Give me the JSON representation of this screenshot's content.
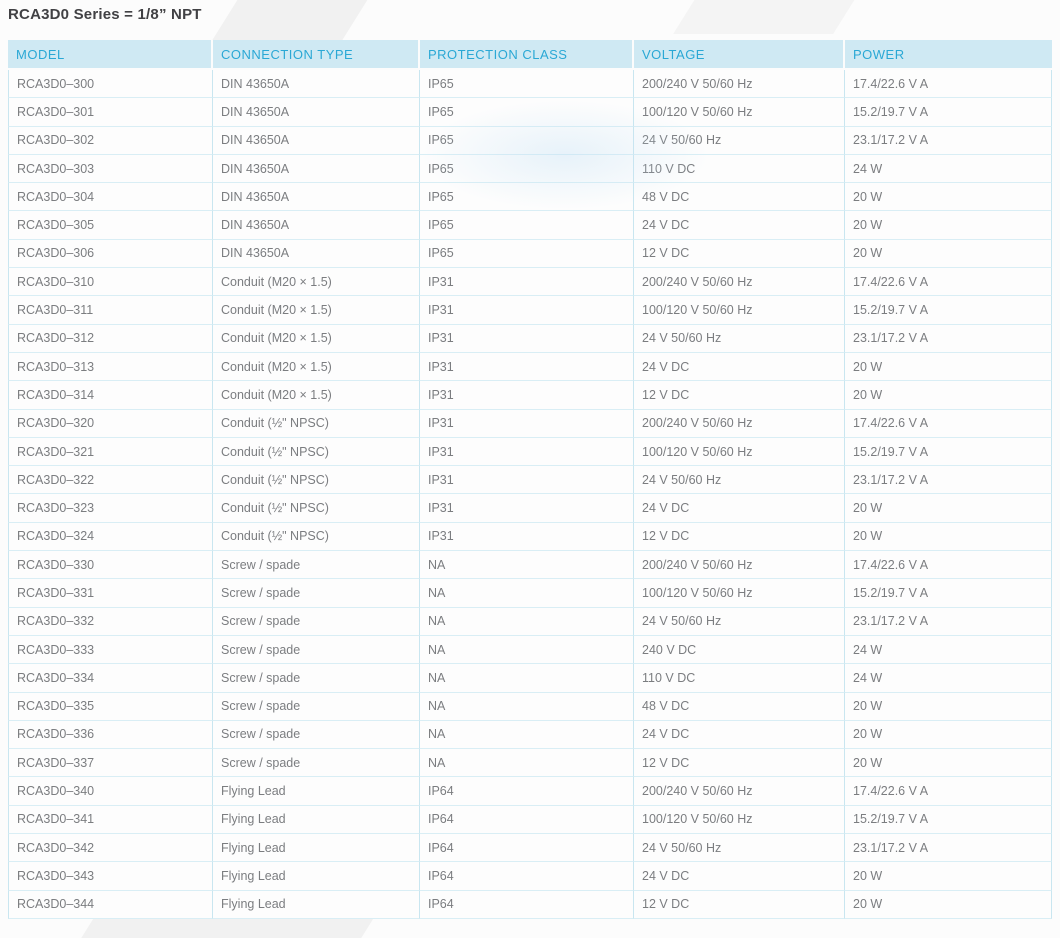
{
  "page_title": "RCA3D0 Series = 1/8” NPT",
  "colors": {
    "header_bg": "#cfe9f3",
    "header_text": "#2aa8d5",
    "body_text": "#7b7d80",
    "grid_line": "#c9e6f0",
    "row_line": "#d9eef5",
    "title_text": "#414144"
  },
  "table": {
    "columns": [
      "MODEL",
      "CONNECTION TYPE",
      "PROTECTION CLASS",
      "VOLTAGE",
      "POWER"
    ],
    "rows": [
      [
        "RCA3D0–300",
        "DIN 43650A",
        "IP65",
        "200/240 V 50/60 Hz",
        "17.4/22.6 V A"
      ],
      [
        "RCA3D0–301",
        "DIN 43650A",
        "IP65",
        "100/120 V 50/60 Hz",
        "15.2/19.7 V A"
      ],
      [
        "RCA3D0–302",
        "DIN 43650A",
        "IP65",
        "24 V 50/60 Hz",
        "23.1/17.2 V A"
      ],
      [
        "RCA3D0–303",
        "DIN 43650A",
        "IP65",
        "110 V DC",
        "24 W"
      ],
      [
        "RCA3D0–304",
        "DIN 43650A",
        "IP65",
        "48 V DC",
        "20 W"
      ],
      [
        "RCA3D0–305",
        "DIN 43650A",
        "IP65",
        "24 V DC",
        "20 W"
      ],
      [
        "RCA3D0–306",
        "DIN 43650A",
        "IP65",
        "12 V DC",
        "20 W"
      ],
      [
        "RCA3D0–310",
        "Conduit (M20 × 1.5)",
        "IP31",
        "200/240 V 50/60 Hz",
        "17.4/22.6 V A"
      ],
      [
        "RCA3D0–311",
        "Conduit (M20 × 1.5)",
        "IP31",
        "100/120 V 50/60 Hz",
        "15.2/19.7 V A"
      ],
      [
        "RCA3D0–312",
        "Conduit (M20 × 1.5)",
        "IP31",
        "24 V 50/60 Hz",
        "23.1/17.2 V A"
      ],
      [
        "RCA3D0–313",
        "Conduit (M20 × 1.5)",
        "IP31",
        "24 V DC",
        "20 W"
      ],
      [
        "RCA3D0–314",
        "Conduit (M20 × 1.5)",
        "IP31",
        "12 V DC",
        "20 W"
      ],
      [
        "RCA3D0–320",
        "Conduit (½\" NPSC)",
        "IP31",
        "200/240 V 50/60 Hz",
        "17.4/22.6 V A"
      ],
      [
        "RCA3D0–321",
        "Conduit (½\" NPSC)",
        "IP31",
        "100/120 V 50/60 Hz",
        "15.2/19.7 V A"
      ],
      [
        "RCA3D0–322",
        "Conduit (½\" NPSC)",
        "IP31",
        "24 V 50/60 Hz",
        "23.1/17.2 V A"
      ],
      [
        "RCA3D0–323",
        "Conduit (½\" NPSC)",
        "IP31",
        "24 V DC",
        "20 W"
      ],
      [
        "RCA3D0–324",
        "Conduit (½\" NPSC)",
        "IP31",
        "12 V DC",
        "20 W"
      ],
      [
        "RCA3D0–330",
        "Screw / spade",
        "NA",
        "200/240 V 50/60 Hz",
        "17.4/22.6 V A"
      ],
      [
        "RCA3D0–331",
        "Screw / spade",
        "NA",
        "100/120 V 50/60 Hz",
        "15.2/19.7 V A"
      ],
      [
        "RCA3D0–332",
        "Screw / spade",
        "NA",
        "24 V 50/60 Hz",
        "23.1/17.2 V A"
      ],
      [
        "RCA3D0–333",
        "Screw / spade",
        "NA",
        "240 V DC",
        "24 W"
      ],
      [
        "RCA3D0–334",
        "Screw / spade",
        "NA",
        "110 V DC",
        "24 W"
      ],
      [
        "RCA3D0–335",
        "Screw / spade",
        "NA",
        "48 V DC",
        "20 W"
      ],
      [
        "RCA3D0–336",
        "Screw / spade",
        "NA",
        "24 V DC",
        "20 W"
      ],
      [
        "RCA3D0–337",
        "Screw / spade",
        "NA",
        "12 V DC",
        "20 W"
      ],
      [
        "RCA3D0–340",
        "Flying Lead",
        "IP64",
        "200/240 V 50/60 Hz",
        "17.4/22.6 V A"
      ],
      [
        "RCA3D0–341",
        "Flying Lead",
        "IP64",
        "100/120 V 50/60 Hz",
        "15.2/19.7 V A"
      ],
      [
        "RCA3D0–342",
        "Flying Lead",
        "IP64",
        "24 V 50/60 Hz",
        "23.1/17.2 V A"
      ],
      [
        "RCA3D0–343",
        "Flying Lead",
        "IP64",
        "24 V DC",
        "20 W"
      ],
      [
        "RCA3D0–344",
        "Flying Lead",
        "IP64",
        "12 V DC",
        "20 W"
      ]
    ]
  }
}
